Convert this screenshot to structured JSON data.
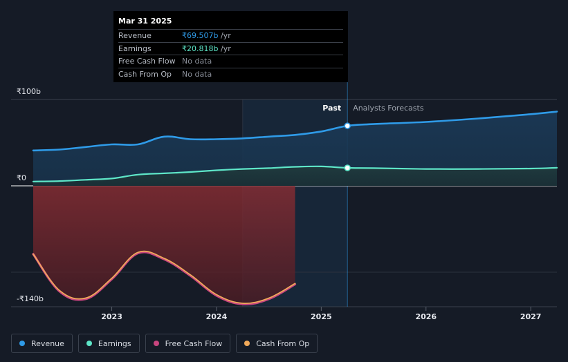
{
  "tooltip": {
    "date": "Mar 31 2025",
    "rows": [
      {
        "label": "Revenue",
        "value": "₹69.507b",
        "unit": " /yr",
        "kind": "rev"
      },
      {
        "label": "Earnings",
        "value": "₹20.818b",
        "unit": " /yr",
        "kind": "earn"
      },
      {
        "label": "Free Cash Flow",
        "value": "No data",
        "unit": "",
        "kind": "none"
      },
      {
        "label": "Cash From Op",
        "value": "No data",
        "unit": "",
        "kind": "none"
      }
    ]
  },
  "legend": [
    {
      "label": "Revenue",
      "color": "#2f9be8"
    },
    {
      "label": "Earnings",
      "color": "#5ee6c8"
    },
    {
      "label": "Free Cash Flow",
      "color": "#c8457f"
    },
    {
      "label": "Cash From Op",
      "color": "#f0a95a"
    }
  ],
  "chart_data": {
    "type": "line",
    "y_labels": [
      "₹100b",
      "₹0",
      "-₹140b"
    ],
    "x_ticks": [
      "2023",
      "2024",
      "2025",
      "2026",
      "2027"
    ],
    "past_label": "Past",
    "forecast_label": "Analysts Forecasts",
    "ylim": [
      -140,
      100
    ],
    "past_end": 2025.25,
    "series": [
      {
        "name": "Revenue",
        "color": "#2f9be8",
        "values": [
          [
            2022.25,
            41
          ],
          [
            2022.5,
            42
          ],
          [
            2022.75,
            45
          ],
          [
            2023.0,
            48
          ],
          [
            2023.25,
            48
          ],
          [
            2023.5,
            57
          ],
          [
            2023.75,
            54
          ],
          [
            2024.0,
            54
          ],
          [
            2024.25,
            55
          ],
          [
            2024.5,
            57
          ],
          [
            2024.75,
            59
          ],
          [
            2025.0,
            63
          ],
          [
            2025.25,
            69.5
          ],
          [
            2025.5,
            71.5
          ],
          [
            2026.0,
            74
          ],
          [
            2026.5,
            78
          ],
          [
            2027.0,
            83
          ],
          [
            2027.25,
            86
          ]
        ]
      },
      {
        "name": "Earnings",
        "color": "#5ee6c8",
        "values": [
          [
            2022.25,
            5
          ],
          [
            2022.5,
            5.5
          ],
          [
            2022.75,
            7
          ],
          [
            2023.0,
            8.5
          ],
          [
            2023.25,
            13
          ],
          [
            2023.5,
            14.5
          ],
          [
            2023.75,
            16
          ],
          [
            2024.0,
            18
          ],
          [
            2024.25,
            19.5
          ],
          [
            2024.5,
            20.5
          ],
          [
            2024.75,
            22
          ],
          [
            2025.0,
            22.5
          ],
          [
            2025.25,
            20.8
          ],
          [
            2025.5,
            20.5
          ],
          [
            2026.0,
            19.5
          ],
          [
            2026.5,
            19.5
          ],
          [
            2027.0,
            20
          ],
          [
            2027.25,
            21
          ]
        ]
      },
      {
        "name": "Free Cash Flow",
        "color": "#c8457f",
        "values": [
          [
            2022.25,
            -79
          ],
          [
            2022.5,
            -122
          ],
          [
            2022.75,
            -131
          ],
          [
            2023.0,
            -108
          ],
          [
            2023.25,
            -78
          ],
          [
            2023.5,
            -85
          ],
          [
            2023.75,
            -104
          ],
          [
            2024.0,
            -127
          ],
          [
            2024.25,
            -137
          ],
          [
            2024.5,
            -131
          ],
          [
            2024.75,
            -114
          ]
        ]
      },
      {
        "name": "Cash From Op",
        "color": "#f0a95a",
        "values": [
          [
            2022.25,
            -79
          ],
          [
            2022.5,
            -121
          ],
          [
            2022.75,
            -130
          ],
          [
            2023.0,
            -107
          ],
          [
            2023.25,
            -77
          ],
          [
            2023.5,
            -84
          ],
          [
            2023.75,
            -103
          ],
          [
            2024.0,
            -126
          ],
          [
            2024.25,
            -136
          ],
          [
            2024.5,
            -130
          ],
          [
            2024.75,
            -113
          ]
        ]
      }
    ]
  }
}
